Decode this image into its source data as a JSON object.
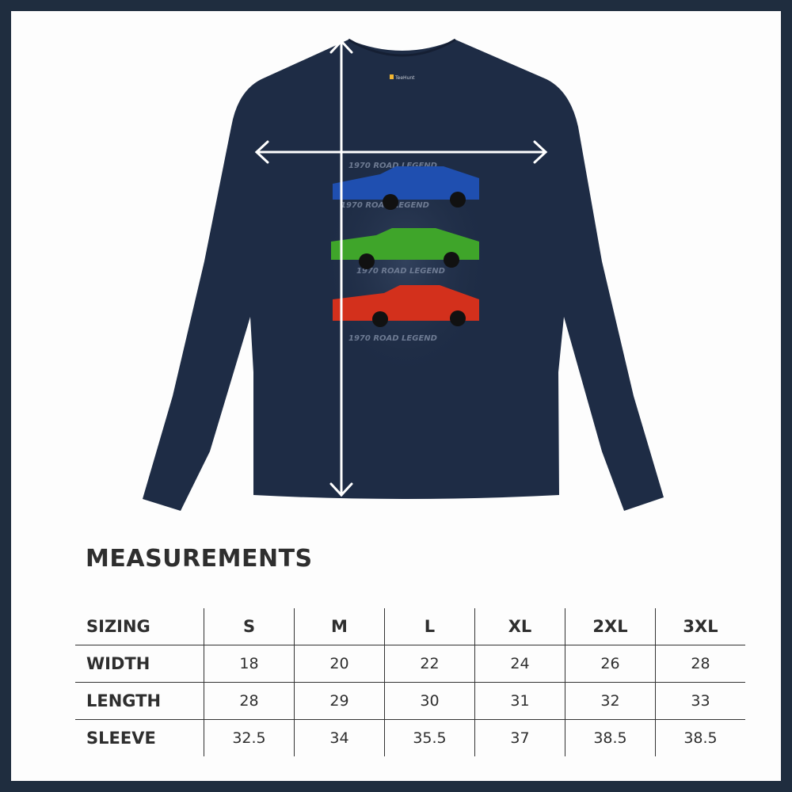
{
  "product": {
    "label_brand": "TeeHunt",
    "print_text": "1970 ROAD LEGEND",
    "shirt_color": "#1e2c45",
    "car_colors": [
      "#1f4fb0",
      "#3fa52a",
      "#d3301c"
    ]
  },
  "measurements": {
    "title": "MEASUREMENTS",
    "header": [
      "SIZING",
      "S",
      "M",
      "L",
      "XL",
      "2XL",
      "3XL"
    ],
    "rows": [
      {
        "label": "WIDTH",
        "values": [
          "18",
          "20",
          "22",
          "24",
          "26",
          "28"
        ]
      },
      {
        "label": "LENGTH",
        "values": [
          "28",
          "29",
          "30",
          "31",
          "32",
          "33"
        ]
      },
      {
        "label": "SLEEVE",
        "values": [
          "32.5",
          "34",
          "35.5",
          "37",
          "38.5",
          "38.5"
        ]
      }
    ]
  }
}
